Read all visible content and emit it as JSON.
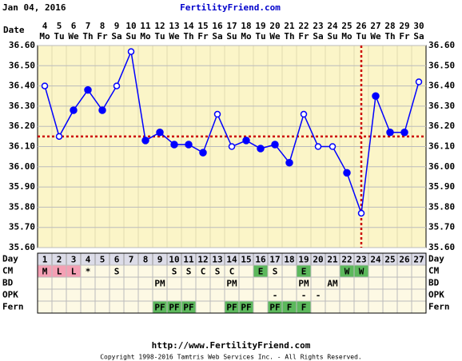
{
  "chart_data": {
    "type": "line",
    "header_date": "Jan 04, 2016",
    "site": "FertilityFriend.com",
    "date_label": "Date",
    "x_label": "Day",
    "dates": [
      4,
      5,
      6,
      7,
      8,
      9,
      10,
      11,
      12,
      13,
      14,
      15,
      16,
      17,
      18,
      19,
      20,
      21,
      22,
      23,
      24,
      25,
      26,
      27,
      28,
      29,
      30
    ],
    "weekdays": [
      "Mo",
      "Tu",
      "We",
      "Th",
      "Fr",
      "Sa",
      "Su",
      "Mo",
      "Tu",
      "We",
      "Th",
      "Fr",
      "Sa",
      "Su",
      "Mo",
      "Tu",
      "We",
      "Th",
      "Fr",
      "Sa",
      "Su",
      "Mo",
      "Tu",
      "We",
      "Th",
      "Fr",
      "Sa"
    ],
    "x": [
      1,
      2,
      3,
      4,
      5,
      6,
      7,
      8,
      9,
      10,
      11,
      12,
      13,
      14,
      15,
      16,
      17,
      18,
      19,
      20,
      21,
      22,
      23,
      24,
      25,
      26,
      27
    ],
    "xlim": [
      0.5,
      27.5
    ],
    "values": [
      36.4,
      36.15,
      36.28,
      36.38,
      36.28,
      36.4,
      36.57,
      36.13,
      36.17,
      36.11,
      36.11,
      36.07,
      36.26,
      36.1,
      36.13,
      36.09,
      36.11,
      36.02,
      36.26,
      36.1,
      36.1,
      35.97,
      35.77,
      36.35,
      36.17,
      36.17,
      36.42
    ],
    "open_markers": [
      true,
      true,
      false,
      false,
      false,
      true,
      true,
      false,
      false,
      false,
      false,
      false,
      true,
      true,
      false,
      false,
      false,
      false,
      true,
      true,
      true,
      false,
      true,
      false,
      false,
      false,
      true
    ],
    "color": "#0000ff",
    "coverline": 36.15,
    "ovulation_day": 23,
    "reference_color": "#cc0000",
    "ylim": [
      35.6,
      36.6
    ],
    "yticks": [
      {
        "value": 35.6,
        "label": "35.60"
      },
      {
        "value": 35.7,
        "label": "35.70"
      },
      {
        "value": 35.8,
        "label": "35.80"
      },
      {
        "value": 35.9,
        "label": "35.90"
      },
      {
        "value": 36.0,
        "label": "36.00"
      },
      {
        "value": 36.1,
        "label": "36.10"
      },
      {
        "value": 36.2,
        "label": "36.20"
      },
      {
        "value": 36.3,
        "label": "36.30"
      },
      {
        "value": 36.4,
        "label": "36.40"
      },
      {
        "value": 36.5,
        "label": "36.50"
      },
      {
        "value": 36.6,
        "label": "36.60"
      }
    ],
    "grid": true,
    "rows": [
      {
        "label": "CM",
        "cells": [
          "M",
          "L",
          "L",
          "*",
          null,
          "S",
          null,
          null,
          null,
          "S",
          "S",
          "C",
          "S",
          "C",
          null,
          "E",
          "S",
          null,
          "E",
          null,
          null,
          "W",
          "W",
          null,
          null,
          null,
          null
        ],
        "colors": [
          "#f4a0b4",
          "#f4a0b4",
          "#f4a0b4",
          null,
          null,
          null,
          null,
          null,
          null,
          null,
          null,
          null,
          null,
          null,
          null,
          "#5cb85c",
          null,
          null,
          "#5cb85c",
          null,
          null,
          "#5cb85c",
          "#5cb85c",
          null,
          null,
          null,
          null
        ]
      },
      {
        "label": "BD",
        "cells": [
          null,
          null,
          null,
          null,
          null,
          null,
          null,
          null,
          "PM",
          null,
          null,
          null,
          null,
          "PM",
          null,
          null,
          null,
          null,
          "PM",
          null,
          "AM",
          null,
          null,
          null,
          null,
          null,
          null
        ],
        "colors": [
          null,
          null,
          null,
          null,
          null,
          null,
          null,
          null,
          null,
          null,
          null,
          null,
          null,
          null,
          null,
          null,
          null,
          null,
          null,
          null,
          null,
          null,
          null,
          null,
          null,
          null,
          null
        ]
      },
      {
        "label": "OPK",
        "cells": [
          null,
          null,
          null,
          null,
          null,
          null,
          null,
          null,
          null,
          null,
          null,
          null,
          null,
          null,
          null,
          null,
          "-",
          null,
          "-",
          "-",
          null,
          null,
          null,
          null,
          null,
          null,
          null
        ],
        "colors": [
          null,
          null,
          null,
          null,
          null,
          null,
          null,
          null,
          null,
          null,
          null,
          null,
          null,
          null,
          null,
          null,
          null,
          null,
          null,
          null,
          null,
          null,
          null,
          null,
          null,
          null,
          null
        ]
      },
      {
        "label": "Fern",
        "cells": [
          null,
          null,
          null,
          null,
          null,
          null,
          null,
          null,
          "PF",
          "PF",
          "PF",
          null,
          null,
          "PF",
          "PF",
          null,
          "PF",
          "F",
          "F",
          null,
          null,
          null,
          null,
          null,
          null,
          null,
          null
        ],
        "colors": [
          null,
          null,
          null,
          null,
          null,
          null,
          null,
          null,
          "#5cb85c",
          "#5cb85c",
          "#5cb85c",
          null,
          null,
          "#5cb85c",
          "#5cb85c",
          null,
          "#5cb85c",
          "#5cb85c",
          "#5cb85c",
          null,
          null,
          null,
          null,
          null,
          null,
          null,
          null
        ]
      }
    ],
    "footer_url": "http://www.FertilityFriend.com",
    "copyright": "Copyright 1998-2016 Tamtris Web Services Inc. - All Rights Reserved."
  }
}
